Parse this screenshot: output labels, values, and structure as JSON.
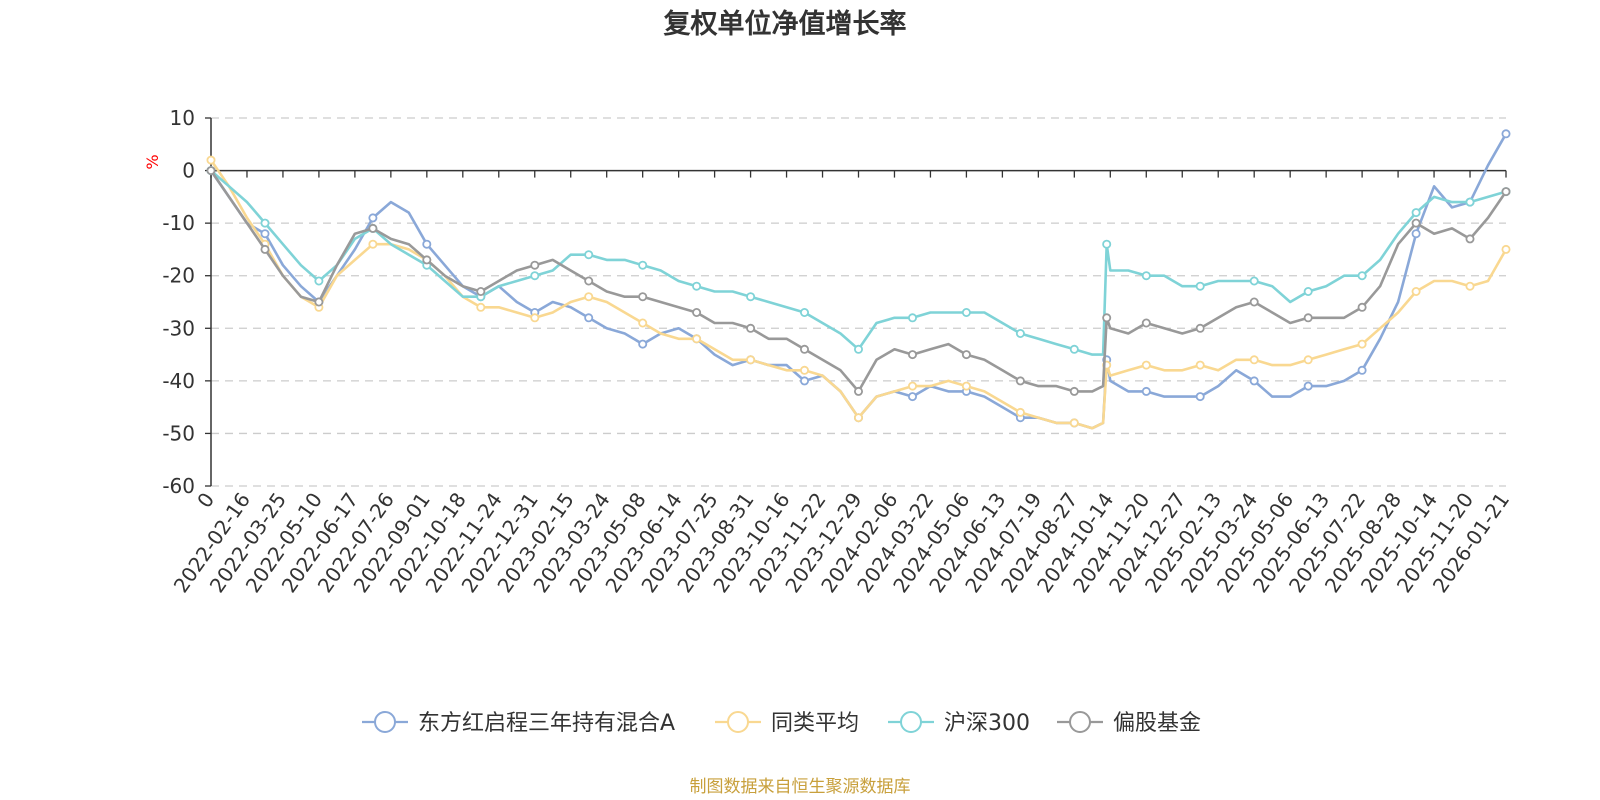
{
  "chart_data": {
    "type": "line",
    "title": "复权单位净值增长率",
    "ylabel": "%",
    "ylim": [
      -60,
      10
    ],
    "yticks": [
      10,
      0,
      -10,
      -20,
      -30,
      -40,
      -50,
      -60
    ],
    "xtick_labels": [
      "0",
      "2022-02-16",
      "2022-03-25",
      "2022-05-10",
      "2022-06-17",
      "2022-07-26",
      "2022-09-01",
      "2022-10-18",
      "2022-11-24",
      "2022-12-31",
      "2023-02-15",
      "2023-03-24",
      "2023-05-08",
      "2023-06-14",
      "2023-07-25",
      "2023-08-31",
      "2023-10-16",
      "2023-11-22",
      "2023-12-29",
      "2024-02-06",
      "2024-03-22",
      "2024-05-06",
      "2024-06-13",
      "2024-07-19",
      "2024-08-27",
      "2024-10-14",
      "2024-11-20",
      "2024-12-27",
      "2025-02-13",
      "2025-03-24",
      "2025-05-06",
      "2025-06-13",
      "2025-07-22",
      "2025-08-28",
      "2025-10-14",
      "2025-11-20",
      "2026-01-21"
    ],
    "x_index_range": [
      0,
      36
    ],
    "series": [
      {
        "name": "东方红启程三年持有混合A",
        "color": "#8aa8d8",
        "x": [
          0,
          0.5,
          1,
          1.5,
          2,
          2.5,
          3,
          3.5,
          4,
          4.5,
          5,
          5.5,
          6,
          6.5,
          7,
          7.5,
          8,
          8.5,
          9,
          9.5,
          10,
          10.5,
          11,
          11.5,
          12,
          12.5,
          13,
          13.5,
          14,
          14.5,
          15,
          15.5,
          16,
          16.5,
          17,
          17.5,
          18,
          18.5,
          19,
          19.5,
          20,
          20.5,
          21,
          21.5,
          22,
          22.5,
          23,
          23.5,
          24,
          24.5,
          24.8,
          24.9,
          25,
          25.5,
          26,
          26.5,
          27,
          27.5,
          28,
          28.5,
          29,
          29.5,
          30,
          30.5,
          31,
          31.5,
          32,
          32.5,
          33,
          33.5,
          34,
          34.5,
          35,
          35.5,
          36
        ],
        "values": [
          0,
          -5,
          -10,
          -12,
          -18,
          -22,
          -25,
          -20,
          -15,
          -9,
          -6,
          -8,
          -14,
          -18,
          -22,
          -24,
          -22,
          -25,
          -27,
          -25,
          -26,
          -28,
          -30,
          -31,
          -33,
          -31,
          -30,
          -32,
          -35,
          -37,
          -36,
          -37,
          -37,
          -40,
          -39,
          -42,
          -47,
          -43,
          -42,
          -43,
          -41,
          -42,
          -42,
          -43,
          -45,
          -47,
          -47,
          -48,
          -48,
          -49,
          -48,
          -36,
          -40,
          -42,
          -42,
          -43,
          -43,
          -43,
          -41,
          -38,
          -40,
          -43,
          -43,
          -41,
          -41,
          -40,
          -38,
          -32,
          -25,
          -12,
          -3,
          -7,
          -6,
          1,
          7
        ]
      },
      {
        "name": "同类平均",
        "color": "#f9d891",
        "x": [
          0,
          0.5,
          1,
          1.5,
          2,
          2.5,
          3,
          3.5,
          4,
          4.5,
          5,
          5.5,
          6,
          6.5,
          7,
          7.5,
          8,
          8.5,
          9,
          9.5,
          10,
          10.5,
          11,
          11.5,
          12,
          12.5,
          13,
          13.5,
          14,
          14.5,
          15,
          15.5,
          16,
          16.5,
          17,
          17.5,
          18,
          18.5,
          19,
          19.5,
          20,
          20.5,
          21,
          21.5,
          22,
          22.5,
          23,
          23.5,
          24,
          24.5,
          24.8,
          24.9,
          25,
          25.5,
          26,
          26.5,
          27,
          27.5,
          28,
          28.5,
          29,
          29.5,
          30,
          30.5,
          31,
          31.5,
          32,
          32.5,
          33,
          33.5,
          34,
          34.5,
          35,
          35.5,
          36
        ],
        "values": [
          2,
          -3,
          -9,
          -14,
          -20,
          -24,
          -26,
          -20,
          -17,
          -14,
          -14,
          -15,
          -17,
          -20,
          -24,
          -26,
          -26,
          -27,
          -28,
          -27,
          -25,
          -24,
          -25,
          -27,
          -29,
          -31,
          -32,
          -32,
          -34,
          -36,
          -36,
          -37,
          -38,
          -38,
          -39,
          -42,
          -47,
          -43,
          -42,
          -41,
          -41,
          -40,
          -41,
          -42,
          -44,
          -46,
          -47,
          -48,
          -48,
          -49,
          -48,
          -37,
          -39,
          -38,
          -37,
          -38,
          -38,
          -37,
          -38,
          -36,
          -36,
          -37,
          -37,
          -36,
          -35,
          -34,
          -33,
          -30,
          -27,
          -23,
          -21,
          -21,
          -22,
          -21,
          -15
        ]
      },
      {
        "name": "沪深300",
        "color": "#7fd3d7",
        "x": [
          0,
          0.5,
          1,
          1.5,
          2,
          2.5,
          3,
          3.5,
          4,
          4.5,
          5,
          5.5,
          6,
          6.5,
          7,
          7.5,
          8,
          8.5,
          9,
          9.5,
          10,
          10.5,
          11,
          11.5,
          12,
          12.5,
          13,
          13.5,
          14,
          14.5,
          15,
          15.5,
          16,
          16.5,
          17,
          17.5,
          18,
          18.5,
          19,
          19.5,
          20,
          20.5,
          21,
          21.5,
          22,
          22.5,
          23,
          23.5,
          24,
          24.5,
          24.8,
          24.9,
          25,
          25.5,
          26,
          26.5,
          27,
          27.5,
          28,
          28.5,
          29,
          29.5,
          30,
          30.5,
          31,
          31.5,
          32,
          32.5,
          33,
          33.5,
          34,
          34.5,
          35,
          35.5,
          36
        ],
        "values": [
          0,
          -3,
          -6,
          -10,
          -14,
          -18,
          -21,
          -18,
          -13,
          -11,
          -14,
          -16,
          -18,
          -21,
          -24,
          -24,
          -22,
          -21,
          -20,
          -19,
          -16,
          -16,
          -17,
          -17,
          -18,
          -19,
          -21,
          -22,
          -23,
          -23,
          -24,
          -25,
          -26,
          -27,
          -29,
          -31,
          -34,
          -29,
          -28,
          -28,
          -27,
          -27,
          -27,
          -27,
          -29,
          -31,
          -32,
          -33,
          -34,
          -35,
          -35,
          -14,
          -19,
          -19,
          -20,
          -20,
          -22,
          -22,
          -21,
          -21,
          -21,
          -22,
          -25,
          -23,
          -22,
          -20,
          -20,
          -17,
          -12,
          -8,
          -5,
          -6,
          -6,
          -5,
          -4
        ]
      },
      {
        "name": "偏股基金",
        "color": "#999999",
        "x": [
          0,
          0.5,
          1,
          1.5,
          2,
          2.5,
          3,
          3.5,
          4,
          4.5,
          5,
          5.5,
          6,
          6.5,
          7,
          7.5,
          8,
          8.5,
          9,
          9.5,
          10,
          10.5,
          11,
          11.5,
          12,
          12.5,
          13,
          13.5,
          14,
          14.5,
          15,
          15.5,
          16,
          16.5,
          17,
          17.5,
          18,
          18.5,
          19,
          19.5,
          20,
          20.5,
          21,
          21.5,
          22,
          22.5,
          23,
          23.5,
          24,
          24.5,
          24.8,
          24.9,
          25,
          25.5,
          26,
          26.5,
          27,
          27.5,
          28,
          28.5,
          29,
          29.5,
          30,
          30.5,
          31,
          31.5,
          32,
          32.5,
          33,
          33.5,
          34,
          34.5,
          35,
          35.5,
          36
        ],
        "values": [
          0,
          -5,
          -10,
          -15,
          -20,
          -24,
          -25,
          -18,
          -12,
          -11,
          -13,
          -14,
          -17,
          -20,
          -22,
          -23,
          -21,
          -19,
          -18,
          -17,
          -19,
          -21,
          -23,
          -24,
          -24,
          -25,
          -26,
          -27,
          -29,
          -29,
          -30,
          -32,
          -32,
          -34,
          -36,
          -38,
          -42,
          -36,
          -34,
          -35,
          -34,
          -33,
          -35,
          -36,
          -38,
          -40,
          -41,
          -41,
          -42,
          -42,
          -41,
          -28,
          -30,
          -31,
          -29,
          -30,
          -31,
          -30,
          -28,
          -26,
          -25,
          -27,
          -29,
          -28,
          -28,
          -28,
          -26,
          -22,
          -14,
          -10,
          -12,
          -11,
          -13,
          -9,
          -4
        ]
      }
    ]
  },
  "footer": {
    "source": "制图数据来自恒生聚源数据库"
  }
}
